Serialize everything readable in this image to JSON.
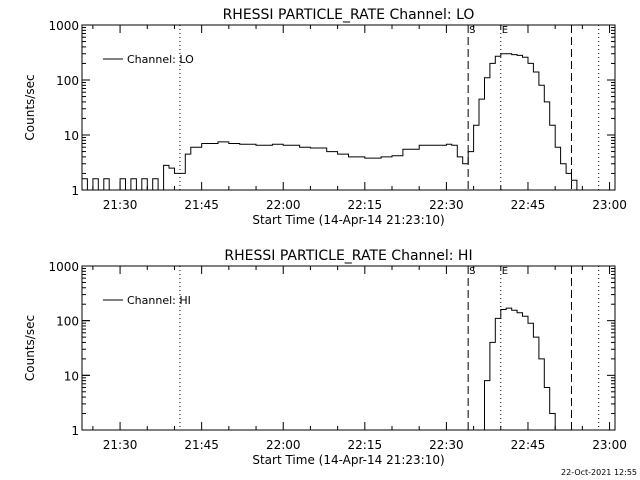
{
  "footer": {
    "timestamp": "22-Oct-2021 12:55"
  },
  "chart_data": [
    {
      "type": "line",
      "title": "RHESSI PARTICLE_RATE Channel: LO",
      "xlabel": "Start Time (14-Apr-14 21:23:10)",
      "ylabel": "Counts/sec",
      "y_scale": "log",
      "ylim": [
        1,
        1000
      ],
      "xlim": [
        "21:23",
        "23:01"
      ],
      "x_ticks": [
        "21:30",
        "21:45",
        "22:00",
        "22:15",
        "22:30",
        "22:45",
        "23:00"
      ],
      "y_ticks": [
        "1",
        "10",
        "100",
        "1000"
      ],
      "legend": {
        "position": "top-left",
        "label": "Channel: LO"
      },
      "markers": [
        {
          "time": "21:41",
          "style": "dotted",
          "label": ""
        },
        {
          "time": "22:34",
          "style": "dashed",
          "label": "S"
        },
        {
          "time": "22:40",
          "style": "dotted",
          "label": "E"
        },
        {
          "time": "22:53",
          "style": "dashed",
          "label": ""
        },
        {
          "time": "22:58",
          "style": "dotted",
          "label": ""
        }
      ],
      "series": [
        {
          "name": "Channel: LO",
          "x": [
            "21:23",
            "21:24",
            "21:25",
            "21:26",
            "21:27",
            "21:28",
            "21:29",
            "21:30",
            "21:31",
            "21:32",
            "21:33",
            "21:34",
            "21:35",
            "21:36",
            "21:37",
            "21:38",
            "21:39",
            "21:40",
            "21:41",
            "21:42",
            "21:43",
            "21:45",
            "21:48",
            "21:50",
            "21:52",
            "21:55",
            "21:58",
            "22:00",
            "22:03",
            "22:05",
            "22:08",
            "22:10",
            "22:12",
            "22:15",
            "22:18",
            "22:20",
            "22:22",
            "22:25",
            "22:28",
            "22:30",
            "22:31",
            "22:32",
            "22:33",
            "22:34",
            "22:35",
            "22:36",
            "22:37",
            "22:38",
            "22:39",
            "22:40",
            "22:41",
            "22:42",
            "22:43",
            "22:44",
            "22:45",
            "22:46",
            "22:47",
            "22:48",
            "22:49",
            "22:50",
            "22:51",
            "22:52",
            "22:53",
            "22:54",
            "22:55",
            "22:56",
            "22:57",
            "22:58"
          ],
          "y": [
            1.6,
            1.0,
            1.6,
            1.0,
            1.6,
            1.0,
            1.0,
            1.6,
            1.0,
            1.6,
            1.0,
            1.6,
            1.0,
            1.6,
            1.0,
            2.8,
            2.5,
            2.0,
            2.0,
            4.5,
            6.0,
            7.0,
            7.5,
            7.0,
            6.8,
            6.5,
            6.8,
            6.5,
            6.0,
            5.8,
            5.0,
            4.5,
            4.0,
            3.8,
            4.0,
            4.2,
            5.5,
            6.5,
            6.5,
            6.8,
            6.5,
            4.0,
            3.0,
            5.0,
            15,
            45,
            110,
            200,
            270,
            300,
            300,
            290,
            280,
            260,
            200,
            140,
            80,
            40,
            15,
            6,
            3,
            2.0,
            1.5,
            1.0,
            1.0,
            1.0,
            1.0,
            1.0
          ]
        }
      ]
    },
    {
      "type": "line",
      "title": "RHESSI PARTICLE_RATE Channel: HI",
      "xlabel": "Start Time (14-Apr-14 21:23:10)",
      "ylabel": "Counts/sec",
      "y_scale": "log",
      "ylim": [
        1,
        1000
      ],
      "xlim": [
        "21:23",
        "23:01"
      ],
      "x_ticks": [
        "21:30",
        "21:45",
        "22:00",
        "22:15",
        "22:30",
        "22:45",
        "23:00"
      ],
      "y_ticks": [
        "1",
        "10",
        "100",
        "1000"
      ],
      "legend": {
        "position": "top-left",
        "label": "Channel: HI"
      },
      "markers": [
        {
          "time": "21:41",
          "style": "dotted",
          "label": ""
        },
        {
          "time": "22:34",
          "style": "dashed",
          "label": "S"
        },
        {
          "time": "22:40",
          "style": "dotted",
          "label": "E"
        },
        {
          "time": "22:53",
          "style": "dashed",
          "label": ""
        },
        {
          "time": "22:58",
          "style": "dotted",
          "label": ""
        }
      ],
      "series": [
        {
          "name": "Channel: HI",
          "x": [
            "22:36",
            "22:37",
            "22:38",
            "22:39",
            "22:40",
            "22:41",
            "22:42",
            "22:43",
            "22:44",
            "22:45",
            "22:46",
            "22:47",
            "22:48",
            "22:49",
            "22:50"
          ],
          "y": [
            1.0,
            8,
            40,
            110,
            160,
            170,
            155,
            140,
            120,
            90,
            50,
            20,
            6,
            2,
            1.0
          ]
        }
      ]
    }
  ]
}
